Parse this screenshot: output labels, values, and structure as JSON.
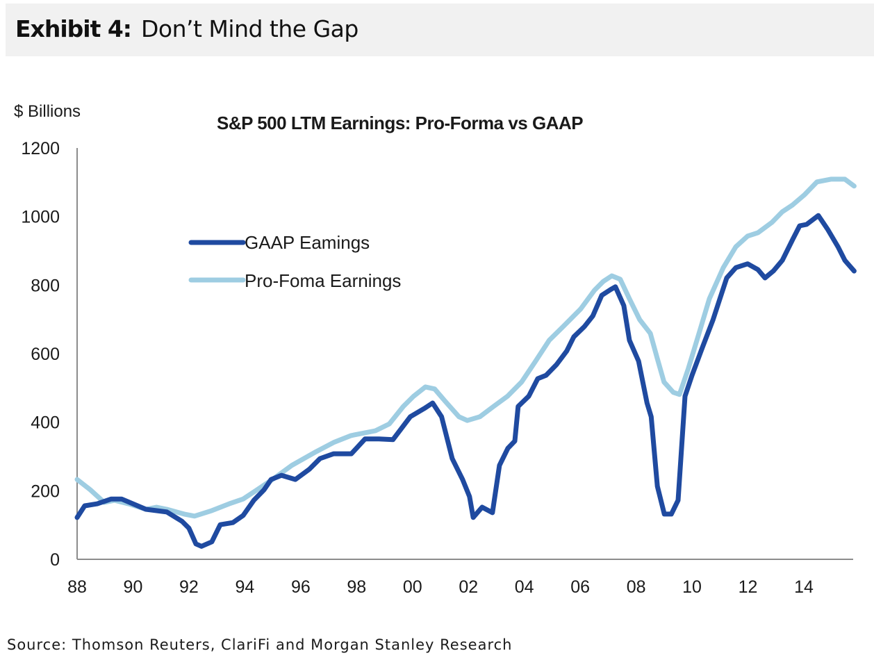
{
  "exhibit": {
    "number": "Exhibit 4:",
    "title": "Don’t Mind the Gap"
  },
  "source": "Source: Thomson Reuters, ClariFi and Morgan Stanley Research",
  "colors": {
    "gaap": "#1f4aa0",
    "pro_forma": "#9ecde2",
    "axis": "#8c8c8c",
    "header_bg": "#f1f1f1"
  },
  "chart_data": {
    "type": "line",
    "title": "S&P 500 LTM Earnings:  Pro-Forma vs GAAP",
    "ylabel": "$ Billions",
    "xlabel": "",
    "xlim": [
      1988,
      2015.8
    ],
    "ylim": [
      0,
      1200
    ],
    "yticks": [
      0,
      200,
      400,
      600,
      800,
      1000,
      1200
    ],
    "xticks": [
      1988,
      1990,
      1992,
      1994,
      1996,
      1998,
      2000,
      2002,
      2004,
      2006,
      2008,
      2010,
      2012,
      2014
    ],
    "xtick_labels": [
      "88",
      "90",
      "92",
      "94",
      "96",
      "98",
      "00",
      "02",
      "04",
      "06",
      "08",
      "10",
      "12",
      "14"
    ],
    "grid": false,
    "legend": {
      "position": "upper-left-inside",
      "entries": [
        "GAAP Eamings",
        "Pro-Foma Earnings"
      ]
    },
    "series": [
      {
        "name": "GAAP Eamings",
        "color": "#1f4aa0",
        "points": [
          [
            1988.0,
            122
          ],
          [
            1988.27,
            156
          ],
          [
            1988.72,
            162
          ],
          [
            1989.22,
            176
          ],
          [
            1989.59,
            176
          ],
          [
            1990.46,
            146
          ],
          [
            1991.21,
            138
          ],
          [
            1991.75,
            111
          ],
          [
            1992.0,
            91
          ],
          [
            1992.25,
            45
          ],
          [
            1992.45,
            38
          ],
          [
            1992.82,
            51
          ],
          [
            1993.12,
            101
          ],
          [
            1993.57,
            107
          ],
          [
            1993.94,
            128
          ],
          [
            1994.32,
            172
          ],
          [
            1994.69,
            203
          ],
          [
            1994.94,
            233
          ],
          [
            1995.31,
            245
          ],
          [
            1995.81,
            233
          ],
          [
            1996.31,
            263
          ],
          [
            1996.69,
            294
          ],
          [
            1997.18,
            308
          ],
          [
            1997.81,
            308
          ],
          [
            1998.3,
            351
          ],
          [
            1998.8,
            351
          ],
          [
            1999.3,
            349
          ],
          [
            1999.92,
            416
          ],
          [
            2000.42,
            440
          ],
          [
            2000.72,
            456
          ],
          [
            2001.04,
            416
          ],
          [
            2001.42,
            294
          ],
          [
            2001.79,
            233
          ],
          [
            2002.04,
            183
          ],
          [
            2002.17,
            122
          ],
          [
            2002.49,
            152
          ],
          [
            2002.86,
            136
          ],
          [
            2003.11,
            274
          ],
          [
            2003.41,
            324
          ],
          [
            2003.66,
            345
          ],
          [
            2003.78,
            446
          ],
          [
            2004.16,
            476
          ],
          [
            2004.48,
            527
          ],
          [
            2004.78,
            537
          ],
          [
            2005.15,
            568
          ],
          [
            2005.52,
            608
          ],
          [
            2005.77,
            649
          ],
          [
            2006.15,
            679
          ],
          [
            2006.45,
            710
          ],
          [
            2006.77,
            770
          ],
          [
            2007.09,
            787
          ],
          [
            2007.26,
            795
          ],
          [
            2007.56,
            740
          ],
          [
            2007.76,
            639
          ],
          [
            2008.09,
            578
          ],
          [
            2008.39,
            456
          ],
          [
            2008.54,
            416
          ],
          [
            2008.76,
            213
          ],
          [
            2009.01,
            132
          ],
          [
            2009.26,
            132
          ],
          [
            2009.5,
            172
          ],
          [
            2009.75,
            476
          ],
          [
            2010.0,
            537
          ],
          [
            2010.37,
            618
          ],
          [
            2010.75,
            699
          ],
          [
            2011.24,
            821
          ],
          [
            2011.57,
            851
          ],
          [
            2011.99,
            862
          ],
          [
            2012.36,
            845
          ],
          [
            2012.61,
            821
          ],
          [
            2012.91,
            841
          ],
          [
            2013.23,
            872
          ],
          [
            2013.6,
            933
          ],
          [
            2013.85,
            973
          ],
          [
            2014.1,
            977
          ],
          [
            2014.52,
            1003
          ],
          [
            2014.85,
            963
          ],
          [
            2015.22,
            912
          ],
          [
            2015.47,
            872
          ],
          [
            2015.8,
            841
          ]
        ]
      },
      {
        "name": "Pro-Foma Earnings",
        "color": "#9ecde2",
        "points": [
          [
            1988.0,
            233
          ],
          [
            1988.47,
            203
          ],
          [
            1988.97,
            166
          ],
          [
            1989.34,
            172
          ],
          [
            1989.84,
            162
          ],
          [
            1990.46,
            146
          ],
          [
            1990.84,
            152
          ],
          [
            1991.21,
            146
          ],
          [
            1991.83,
            132
          ],
          [
            1992.2,
            126
          ],
          [
            1992.82,
            142
          ],
          [
            1993.44,
            162
          ],
          [
            1993.94,
            176
          ],
          [
            1994.44,
            203
          ],
          [
            1995.06,
            237
          ],
          [
            1995.68,
            274
          ],
          [
            1996.55,
            314
          ],
          [
            1997.18,
            341
          ],
          [
            1997.8,
            361
          ],
          [
            1998.67,
            375
          ],
          [
            1999.17,
            395
          ],
          [
            1999.67,
            446
          ],
          [
            2000.04,
            476
          ],
          [
            2000.46,
            503
          ],
          [
            2000.79,
            497
          ],
          [
            2001.16,
            462
          ],
          [
            2001.66,
            416
          ],
          [
            2001.96,
            405
          ],
          [
            2002.41,
            416
          ],
          [
            2002.9,
            446
          ],
          [
            2003.4,
            476
          ],
          [
            2003.9,
            517
          ],
          [
            2004.4,
            578
          ],
          [
            2004.89,
            639
          ],
          [
            2005.39,
            679
          ],
          [
            2006.01,
            730
          ],
          [
            2006.51,
            785
          ],
          [
            2006.83,
            811
          ],
          [
            2007.13,
            827
          ],
          [
            2007.43,
            817
          ],
          [
            2007.76,
            760
          ],
          [
            2008.13,
            699
          ],
          [
            2008.51,
            659
          ],
          [
            2008.75,
            588
          ],
          [
            2009.0,
            517
          ],
          [
            2009.33,
            487
          ],
          [
            2009.55,
            481
          ],
          [
            2009.87,
            557
          ],
          [
            2010.25,
            659
          ],
          [
            2010.62,
            760
          ],
          [
            2011.12,
            851
          ],
          [
            2011.57,
            912
          ],
          [
            2011.99,
            943
          ],
          [
            2012.36,
            953
          ],
          [
            2012.86,
            983
          ],
          [
            2013.23,
            1014
          ],
          [
            2013.6,
            1034
          ],
          [
            2014.03,
            1064
          ],
          [
            2014.47,
            1101
          ],
          [
            2014.97,
            1109
          ],
          [
            2015.47,
            1109
          ],
          [
            2015.8,
            1089
          ]
        ]
      }
    ]
  }
}
